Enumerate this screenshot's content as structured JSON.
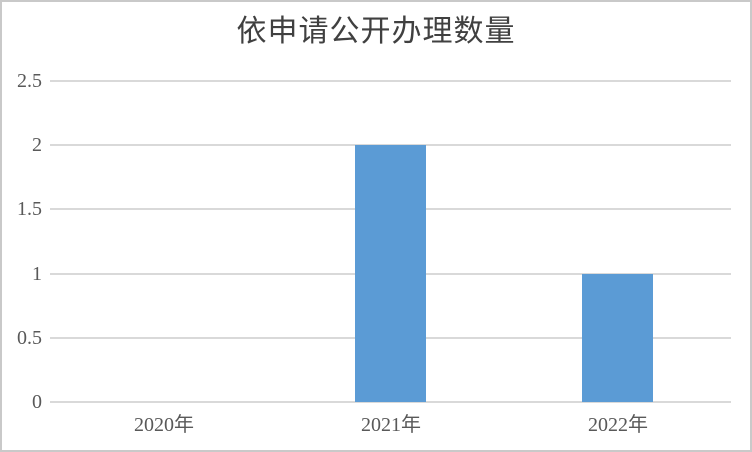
{
  "chart_data": {
    "type": "bar",
    "title": "依申请公开办理数量",
    "categories": [
      "2020年",
      "2021年",
      "2022年"
    ],
    "values": [
      0,
      2,
      1
    ],
    "xlabel": "",
    "ylabel": "",
    "ylim": [
      0,
      2.5
    ],
    "yticks": [
      0,
      0.5,
      1,
      1.5,
      2,
      2.5
    ],
    "ytick_labels": [
      "0",
      "0.5",
      "1",
      "1.5",
      "2",
      "2.5"
    ],
    "grid": "horizontal",
    "legend": "none",
    "bar_color": "#5b9bd5",
    "gridline_color": "#d9d9d9",
    "axis_line_color": "#d9d9d9",
    "axis_text_color": "#595959",
    "title_color": "#404040",
    "border_color": "#c9c9c9",
    "background_color": "#ffffff"
  }
}
